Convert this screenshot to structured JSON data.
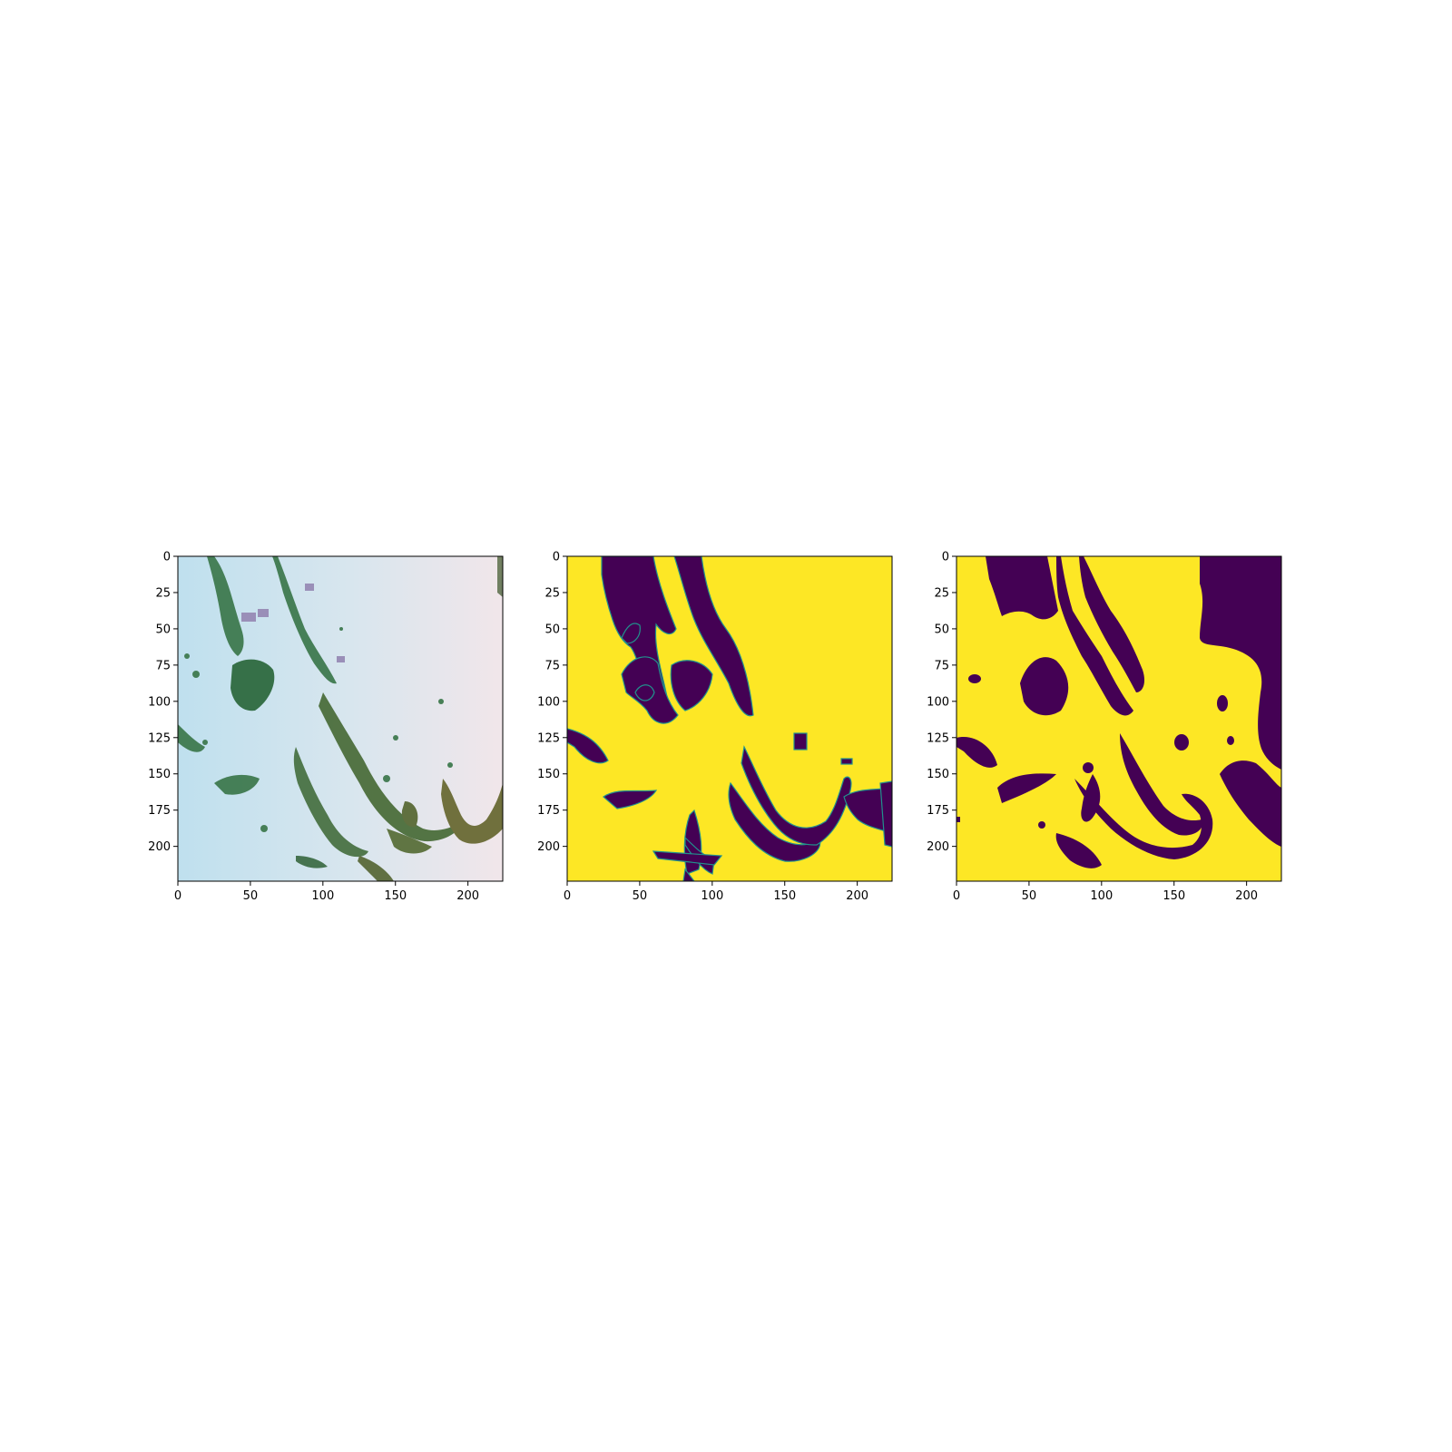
{
  "colors": {
    "background": "#ffffff",
    "mask_dark": "#440154",
    "mask_bright": "#fde725",
    "mask_edge": "#21918c",
    "photo_water": "#cfe2ec",
    "photo_water_light": "#efe6ea",
    "photo_vegetation": "#3a6b45",
    "photo_vegetation_dark": "#244a2c",
    "photo_roof": "#9a8fb8"
  },
  "chart_data": [
    {
      "type": "heatmap",
      "content": "aerial-photo",
      "title": "",
      "xlabel": "",
      "ylabel": "",
      "xlim": [
        0,
        224
      ],
      "ylim": [
        224,
        0
      ],
      "xticks": [
        0,
        50,
        100,
        150,
        200
      ],
      "yticks": [
        0,
        25,
        50,
        75,
        100,
        125,
        150,
        175,
        200
      ],
      "xtick_labels": [
        "0",
        "50",
        "100",
        "150",
        "200"
      ],
      "ytick_labels": [
        "0",
        "25",
        "50",
        "75",
        "100",
        "125",
        "150",
        "175",
        "200"
      ]
    },
    {
      "type": "heatmap",
      "content": "segmentation-mask",
      "colormap": "viridis",
      "title": "",
      "xlabel": "",
      "ylabel": "",
      "xlim": [
        0,
        224
      ],
      "ylim": [
        224,
        0
      ],
      "xticks": [
        0,
        50,
        100,
        150,
        200
      ],
      "yticks": [
        0,
        25,
        50,
        75,
        100,
        125,
        150,
        175,
        200
      ],
      "xtick_labels": [
        "0",
        "50",
        "100",
        "150",
        "200"
      ],
      "ytick_labels": [
        "0",
        "25",
        "50",
        "75",
        "100",
        "125",
        "150",
        "175",
        "200"
      ]
    },
    {
      "type": "heatmap",
      "content": "predicted-mask",
      "colormap": "viridis",
      "title": "",
      "xlabel": "",
      "ylabel": "",
      "xlim": [
        0,
        224
      ],
      "ylim": [
        224,
        0
      ],
      "xticks": [
        0,
        50,
        100,
        150,
        200
      ],
      "yticks": [
        0,
        25,
        50,
        75,
        100,
        125,
        150,
        175,
        200
      ],
      "xtick_labels": [
        "0",
        "50",
        "100",
        "150",
        "200"
      ],
      "ytick_labels": [
        "0",
        "25",
        "50",
        "75",
        "100",
        "125",
        "150",
        "175",
        "200"
      ]
    }
  ]
}
